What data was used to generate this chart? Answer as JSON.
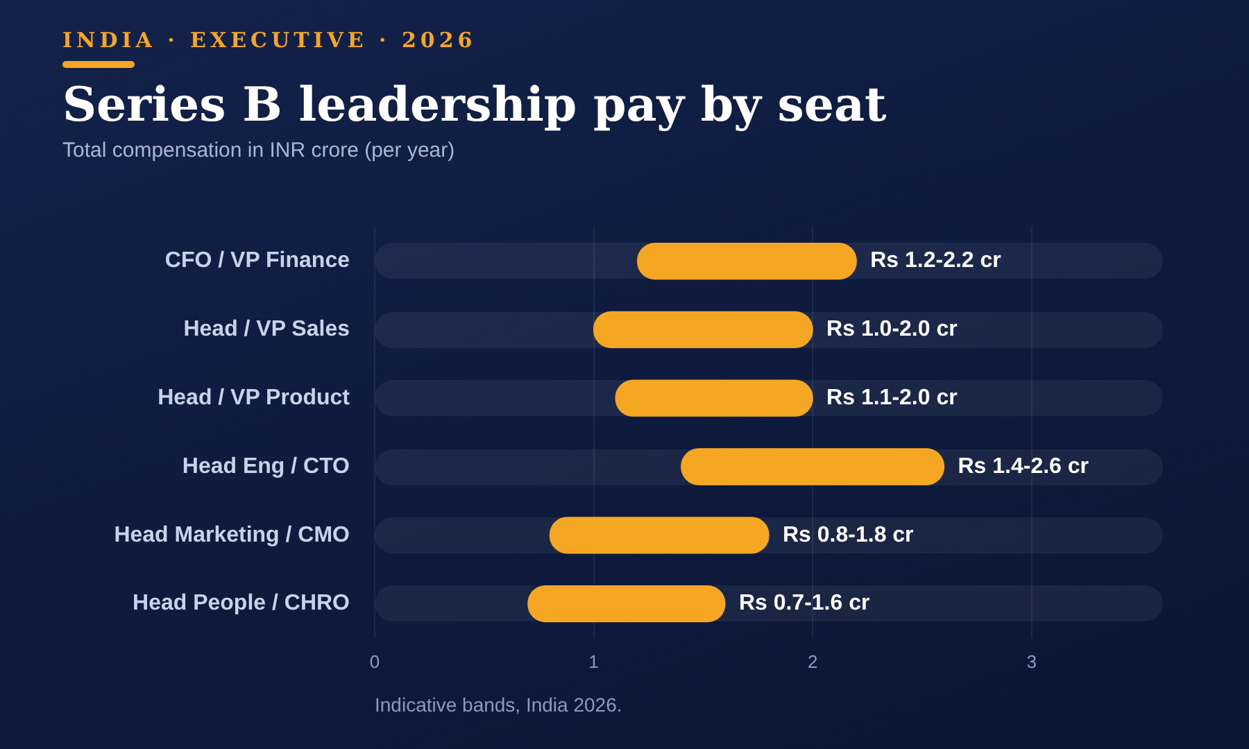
{
  "chart_data": {
    "type": "bar",
    "orientation": "horizontal",
    "title": "Series B leadership pay by seat",
    "subtitle": "Total compensation in INR crore (per year)",
    "annotations": [
      "INDIA · EXECUTIVE · 2026",
      "Indicative bands, India 2026."
    ],
    "categories": [
      "CFO / VP Finance",
      "Head / VP Sales",
      "Head / VP Product",
      "Head Eng / CTO",
      "Head Marketing / CMO",
      "Head People / CHRO"
    ],
    "base": [
      1.2,
      1.0,
      1.1,
      1.4,
      0.8,
      0.7
    ],
    "values": [
      1.0,
      1.0,
      0.9,
      1.2,
      1.0,
      0.9
    ],
    "value_labels": [
      "Rs 1.2-2.2 cr",
      "Rs 1.0-2.0 cr",
      "Rs 1.1-2.0 cr",
      "Rs 1.4-2.6 cr",
      "Rs 0.8-1.8 cr",
      "Rs 0.7-1.6 cr"
    ],
    "color": "#f5a623",
    "xlim": [
      0,
      3.6
    ],
    "xticks": [
      0,
      1,
      2,
      3
    ],
    "grid": "x"
  }
}
